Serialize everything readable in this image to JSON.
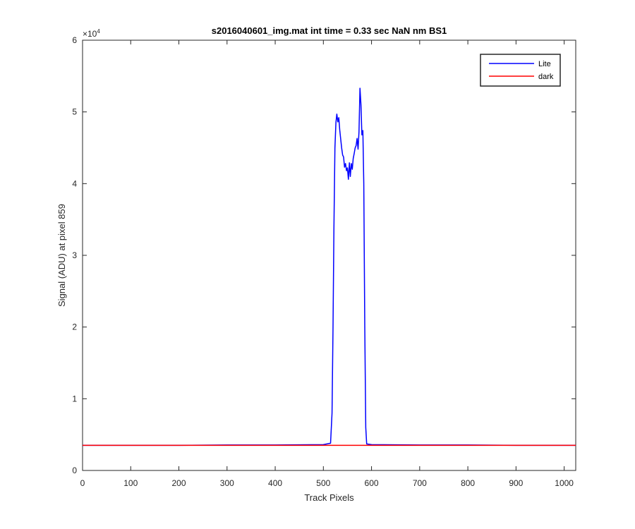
{
  "chart_data": {
    "type": "line",
    "title": "s2016040601_img.mat int time = 0.33 sec  NaN nm BS1",
    "xlabel": "Track Pixels",
    "ylabel": "Signal (ADU) at pixel 859",
    "exponent_label": "×10",
    "exponent_power": "4",
    "xlim": [
      0,
      1024
    ],
    "ylim": [
      0,
      60000
    ],
    "x_ticks": [
      0,
      100,
      200,
      300,
      400,
      500,
      600,
      700,
      800,
      900,
      1000
    ],
    "x_tick_labels": [
      "0",
      "100",
      "200",
      "300",
      "400",
      "500",
      "600",
      "700",
      "800",
      "900",
      "1000"
    ],
    "y_ticks": [
      0,
      10000,
      20000,
      30000,
      40000,
      50000,
      60000
    ],
    "y_tick_labels": [
      "0",
      "1",
      "2",
      "3",
      "4",
      "5",
      "6"
    ],
    "grid": false,
    "legend_position": "top-right",
    "series": [
      {
        "name": "Lite",
        "color": "#0000ff",
        "x": [
          0,
          100,
          200,
          300,
          400,
          500,
          515,
          518,
          520,
          522,
          524,
          526,
          528,
          530,
          532,
          534,
          536,
          538,
          540,
          542,
          544,
          546,
          548,
          550,
          552,
          554,
          556,
          558,
          560,
          562,
          564,
          566,
          568,
          570,
          572,
          574,
          576,
          578,
          580,
          582,
          584,
          586,
          588,
          590,
          600,
          700,
          800,
          900,
          1024
        ],
        "y": [
          3500,
          3500,
          3500,
          3550,
          3550,
          3600,
          3800,
          8000,
          20000,
          34000,
          45000,
          48500,
          49700,
          48600,
          49200,
          47500,
          46200,
          45000,
          44000,
          43700,
          42300,
          42800,
          41800,
          42200,
          40600,
          42900,
          41000,
          42800,
          42000,
          43500,
          44200,
          45000,
          45300,
          46300,
          44800,
          47200,
          53300,
          51000,
          46800,
          47400,
          40000,
          20000,
          6000,
          3700,
          3600,
          3550,
          3550,
          3500,
          3500
        ]
      },
      {
        "name": "dark",
        "color": "#ff0000",
        "x": [
          0,
          1024
        ],
        "y": [
          3500,
          3500
        ]
      }
    ]
  }
}
